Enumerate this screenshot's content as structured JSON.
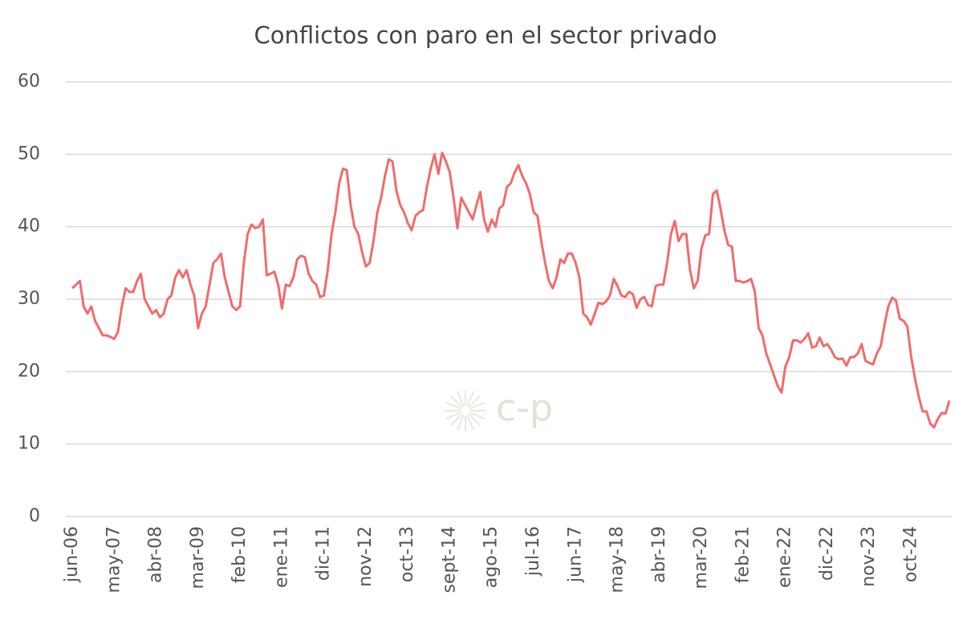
{
  "chart_data": {
    "type": "line",
    "title": "Conflictos con paro en el sector privado",
    "watermark": "c-p",
    "categories": [
      "jun-06",
      null,
      null,
      null,
      null,
      null,
      null,
      null,
      null,
      null,
      null,
      "may-07",
      null,
      null,
      null,
      null,
      null,
      null,
      null,
      null,
      null,
      null,
      "abr-08",
      null,
      null,
      null,
      null,
      null,
      null,
      null,
      null,
      null,
      null,
      "mar-09",
      null,
      null,
      null,
      null,
      null,
      null,
      null,
      null,
      null,
      null,
      "feb-10",
      null,
      null,
      null,
      null,
      null,
      null,
      null,
      null,
      null,
      null,
      "ene-11",
      null,
      null,
      null,
      null,
      null,
      null,
      null,
      null,
      null,
      null,
      "dic-11",
      null,
      null,
      null,
      null,
      null,
      null,
      null,
      null,
      null,
      null,
      "nov-12",
      null,
      null,
      null,
      null,
      null,
      null,
      null,
      null,
      null,
      null,
      "oct-13",
      null,
      null,
      null,
      null,
      null,
      null,
      null,
      null,
      null,
      null,
      "sept-14",
      null,
      null,
      null,
      null,
      null,
      null,
      null,
      null,
      null,
      null,
      "ago-15",
      null,
      null,
      null,
      null,
      null,
      null,
      null,
      null,
      null,
      null,
      "jul-16",
      null,
      null,
      null,
      null,
      null,
      null,
      null,
      null,
      null,
      null,
      "jun-17",
      null,
      null,
      null,
      null,
      null,
      null,
      null,
      null,
      null,
      null,
      "may-18",
      null,
      null,
      null,
      null,
      null,
      null,
      null,
      null,
      null,
      null,
      "abr-19",
      null,
      null,
      null,
      null,
      null,
      null,
      null,
      null,
      null,
      null,
      "mar-20",
      null,
      null,
      null,
      null,
      null,
      null,
      null,
      null,
      null,
      null,
      "feb-21",
      null,
      null,
      null,
      null,
      null,
      null,
      null,
      null,
      null,
      null,
      "ene-22",
      null,
      null,
      null,
      null,
      null,
      null,
      null,
      null,
      null,
      null,
      "dic-22",
      null,
      null,
      null,
      null,
      null,
      null,
      null,
      null,
      null,
      null,
      "nov-23",
      null,
      null,
      null,
      null,
      null,
      null,
      null,
      null,
      null,
      null,
      "oct-24",
      null,
      null,
      null,
      null,
      null,
      null,
      null,
      null,
      null,
      null
    ],
    "series": [
      {
        "name": "Conflictos con paro en el sector privado",
        "color": "#f26b6b",
        "values": [
          31.5,
          32,
          32.5,
          29,
          28,
          29,
          27,
          26,
          25,
          25,
          24.8,
          24.5,
          25.5,
          29,
          31.5,
          31,
          31,
          32.5,
          33.5,
          30,
          29,
          28,
          28.5,
          27.5,
          28,
          30,
          30.5,
          33,
          34,
          33,
          34,
          32,
          30.5,
          26,
          28,
          29,
          32,
          35,
          35.5,
          36.3,
          33,
          31,
          29,
          28.5,
          29,
          35,
          39,
          40.3,
          39.8,
          40,
          41,
          33.3,
          33.5,
          33.8,
          32,
          28.7,
          32,
          31.8,
          33,
          35.5,
          36,
          35.8,
          33.5,
          32.5,
          32,
          30.3,
          30.5,
          34,
          39,
          42,
          46,
          48,
          47.8,
          43,
          40,
          39,
          36.5,
          34.5,
          35,
          38,
          42,
          44,
          47,
          49.3,
          49,
          45,
          43,
          42,
          40.5,
          39.5,
          41.5,
          42,
          42.3,
          45.5,
          48,
          50,
          47.3,
          50.2,
          49,
          47.5,
          44,
          39.8,
          44,
          43,
          42,
          41,
          43,
          44.8,
          41,
          39.3,
          41,
          40,
          42.5,
          43,
          45.5,
          46,
          47.5,
          48.5,
          47,
          46,
          44.5,
          42,
          41.5,
          38,
          35,
          32.5,
          31.5,
          33,
          35.5,
          35,
          36.3,
          36.3,
          35,
          33,
          28,
          27.5,
          26.5,
          28,
          29.5,
          29.3,
          29.7,
          30.5,
          32.8,
          31.8,
          30.5,
          30.3,
          31,
          30.7,
          28.8,
          30,
          30.3,
          29.2,
          29,
          31.8,
          32,
          32,
          35,
          39,
          40.8,
          38,
          39,
          39,
          34,
          31.5,
          32.5,
          37,
          38.8,
          39,
          44.5,
          45,
          42.5,
          39.5,
          37.5,
          37.2,
          32.5,
          32.5,
          32.3,
          32.5,
          32.8,
          31,
          26,
          25,
          22.5,
          21,
          19.5,
          18,
          17.1,
          20.7,
          22,
          24.3,
          24.3,
          24,
          24.5,
          25.3,
          23.3,
          23.5,
          24.7,
          23.5,
          23.8,
          23,
          22,
          21.7,
          21.8,
          20.8,
          22,
          22,
          22.5,
          23.8,
          21.5,
          21.2,
          21,
          22.5,
          23.5,
          26.5,
          29,
          30.2,
          29.8,
          27.3,
          27,
          26.2,
          22,
          19,
          16.5,
          14.5,
          14.5,
          12.8,
          12.3,
          13.5,
          14.3,
          14.2,
          16
        ]
      }
    ],
    "ylim": [
      0,
      60
    ],
    "yticks": [
      0,
      10,
      20,
      30,
      40,
      50,
      60
    ],
    "grid": true
  }
}
